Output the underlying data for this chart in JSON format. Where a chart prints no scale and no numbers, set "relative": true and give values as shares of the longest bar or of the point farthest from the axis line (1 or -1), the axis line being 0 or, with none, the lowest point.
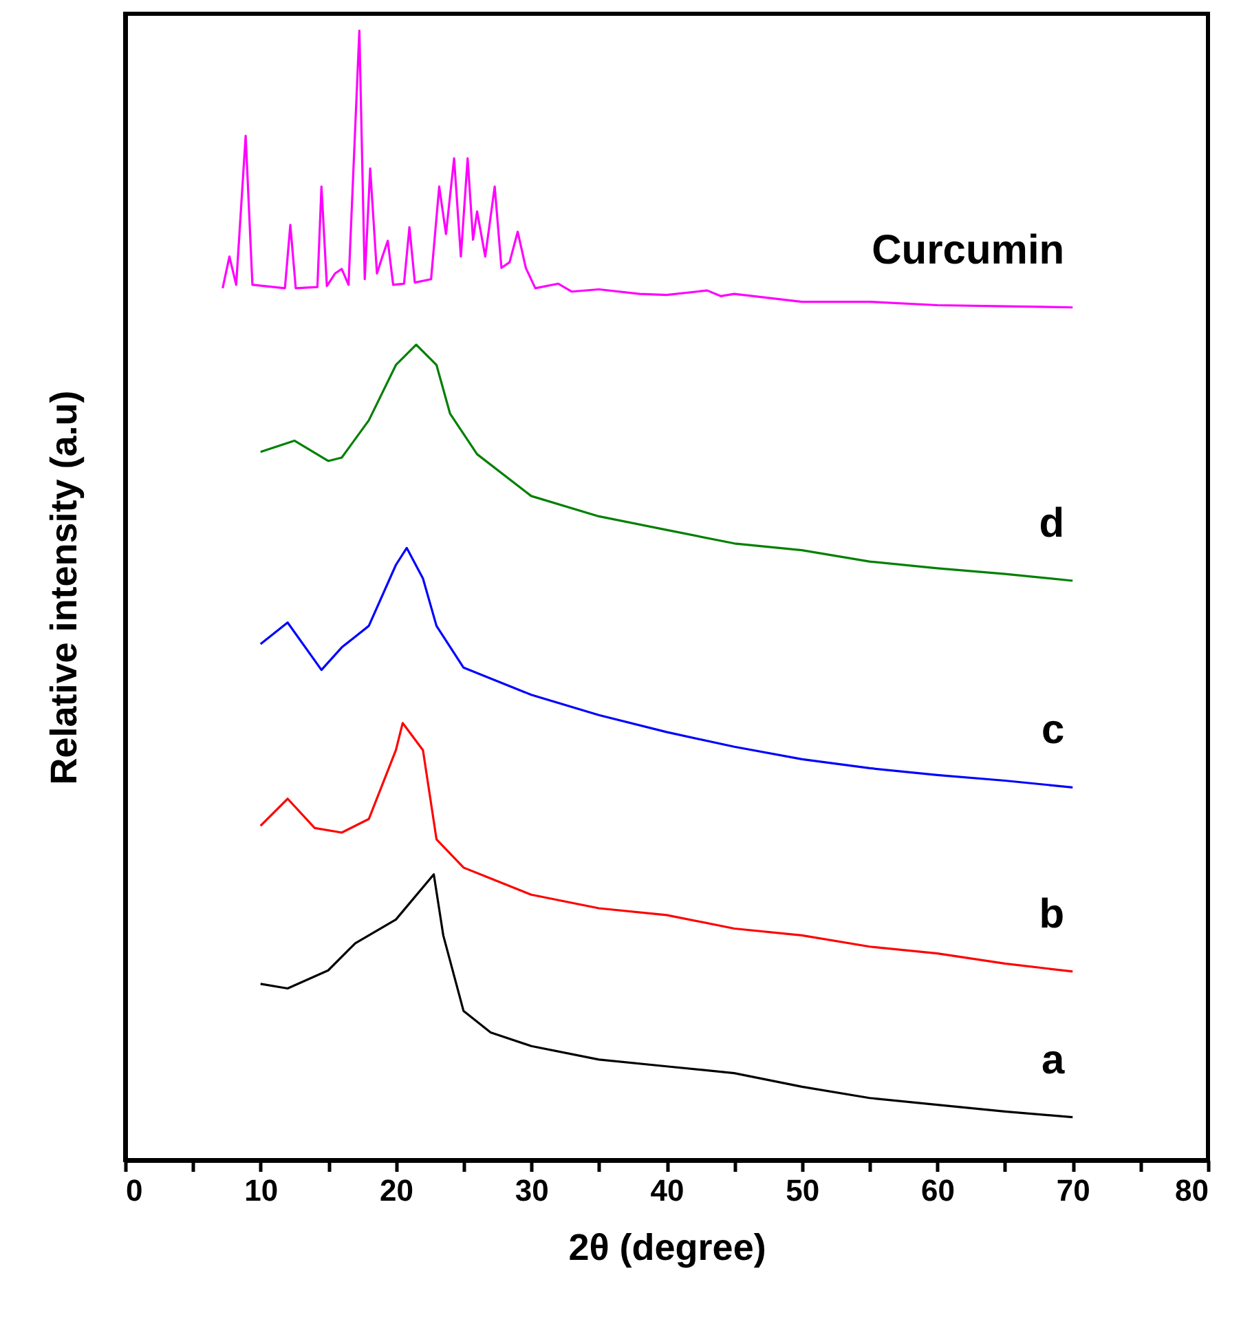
{
  "chart_data": {
    "type": "line",
    "relative": true,
    "xlabel": "2θ (degree)",
    "ylabel": "Relative intensity (a.u)",
    "xlim": [
      0,
      80
    ],
    "xticks": [
      0,
      {
        "value": 5,
        "label": null
      },
      10,
      {
        "value": 15,
        "label": null
      },
      20,
      {
        "value": 25,
        "label": null
      },
      30,
      {
        "value": 35,
        "label": null
      },
      40,
      {
        "value": 45,
        "label": null
      },
      50,
      {
        "value": 55,
        "label": null
      },
      60,
      {
        "value": 65,
        "label": null
      },
      70,
      {
        "value": 75,
        "label": null
      },
      80
    ],
    "legend": false,
    "grid": false,
    "series": [
      {
        "name": "Curcumin",
        "color": "#ff00ff",
        "x": [
          7.2,
          7.7,
          8.2,
          8.9,
          9.4,
          11.8,
          12.2,
          12.6,
          14.2,
          14.5,
          14.9,
          15.5,
          16,
          16.5,
          17.3,
          17.7,
          18.1,
          18.6,
          19.0,
          19.4,
          19.8,
          20.6,
          21.0,
          21.4,
          22.6,
          23.2,
          23.7,
          24.3,
          24.8,
          25.3,
          25.7,
          26.0,
          26.6,
          27.3,
          27.8,
          28.4,
          29.0,
          29.6,
          30.3,
          32,
          33,
          35,
          38,
          40,
          43,
          44,
          45,
          50,
          55,
          60,
          65,
          70
        ],
        "values": [
          0.772,
          0.8,
          0.775,
          0.907,
          0.775,
          0.772,
          0.828,
          0.772,
          0.773,
          0.862,
          0.774,
          0.785,
          0.789,
          0.775,
          1.0,
          0.78,
          0.878,
          0.785,
          0.8,
          0.814,
          0.775,
          0.776,
          0.826,
          0.777,
          0.78,
          0.862,
          0.82,
          0.887,
          0.8,
          0.887,
          0.815,
          0.84,
          0.8,
          0.862,
          0.79,
          0.795,
          0.822,
          0.79,
          0.772,
          0.776,
          0.769,
          0.771,
          0.767,
          0.766,
          0.77,
          0.765,
          0.767,
          0.76,
          0.76,
          0.757,
          0.756,
          0.755
        ]
      },
      {
        "name": "d",
        "color": "#008000",
        "x": [
          10,
          12.5,
          15,
          16,
          18,
          20,
          21.5,
          23,
          24,
          26,
          30,
          35,
          40,
          45,
          50,
          55,
          60,
          65,
          70
        ],
        "values": [
          0.627,
          0.637,
          0.619,
          0.622,
          0.655,
          0.704,
          0.722,
          0.704,
          0.661,
          0.625,
          0.588,
          0.57,
          0.558,
          0.546,
          0.54,
          0.53,
          0.524,
          0.519,
          0.513
        ]
      },
      {
        "name": "c",
        "color": "#0000ff",
        "x": [
          10,
          12,
          14.5,
          16,
          18,
          20,
          20.8,
          22,
          23,
          25,
          30,
          35,
          40,
          45,
          50,
          55,
          60,
          65,
          70
        ],
        "values": [
          0.457,
          0.476,
          0.434,
          0.454,
          0.473,
          0.527,
          0.542,
          0.515,
          0.473,
          0.436,
          0.412,
          0.394,
          0.379,
          0.366,
          0.355,
          0.347,
          0.341,
          0.336,
          0.33
        ]
      },
      {
        "name": "b",
        "color": "#ff0000",
        "x": [
          10,
          12,
          14,
          16,
          18,
          20,
          20.5,
          22,
          23,
          25,
          30,
          35,
          40,
          45,
          50,
          55,
          60,
          65,
          70
        ],
        "values": [
          0.296,
          0.32,
          0.294,
          0.29,
          0.302,
          0.363,
          0.387,
          0.363,
          0.284,
          0.259,
          0.235,
          0.223,
          0.217,
          0.205,
          0.199,
          0.189,
          0.183,
          0.174,
          0.167
        ]
      },
      {
        "name": "a",
        "color": "#000000",
        "x": [
          10,
          12,
          15,
          17,
          20,
          22.8,
          23.5,
          25,
          27,
          30,
          35,
          40,
          45,
          50,
          55,
          60,
          65,
          70
        ],
        "values": [
          0.156,
          0.152,
          0.168,
          0.192,
          0.213,
          0.253,
          0.199,
          0.132,
          0.113,
          0.101,
          0.089,
          0.083,
          0.077,
          0.065,
          0.055,
          0.049,
          0.043,
          0.038
        ]
      }
    ]
  }
}
